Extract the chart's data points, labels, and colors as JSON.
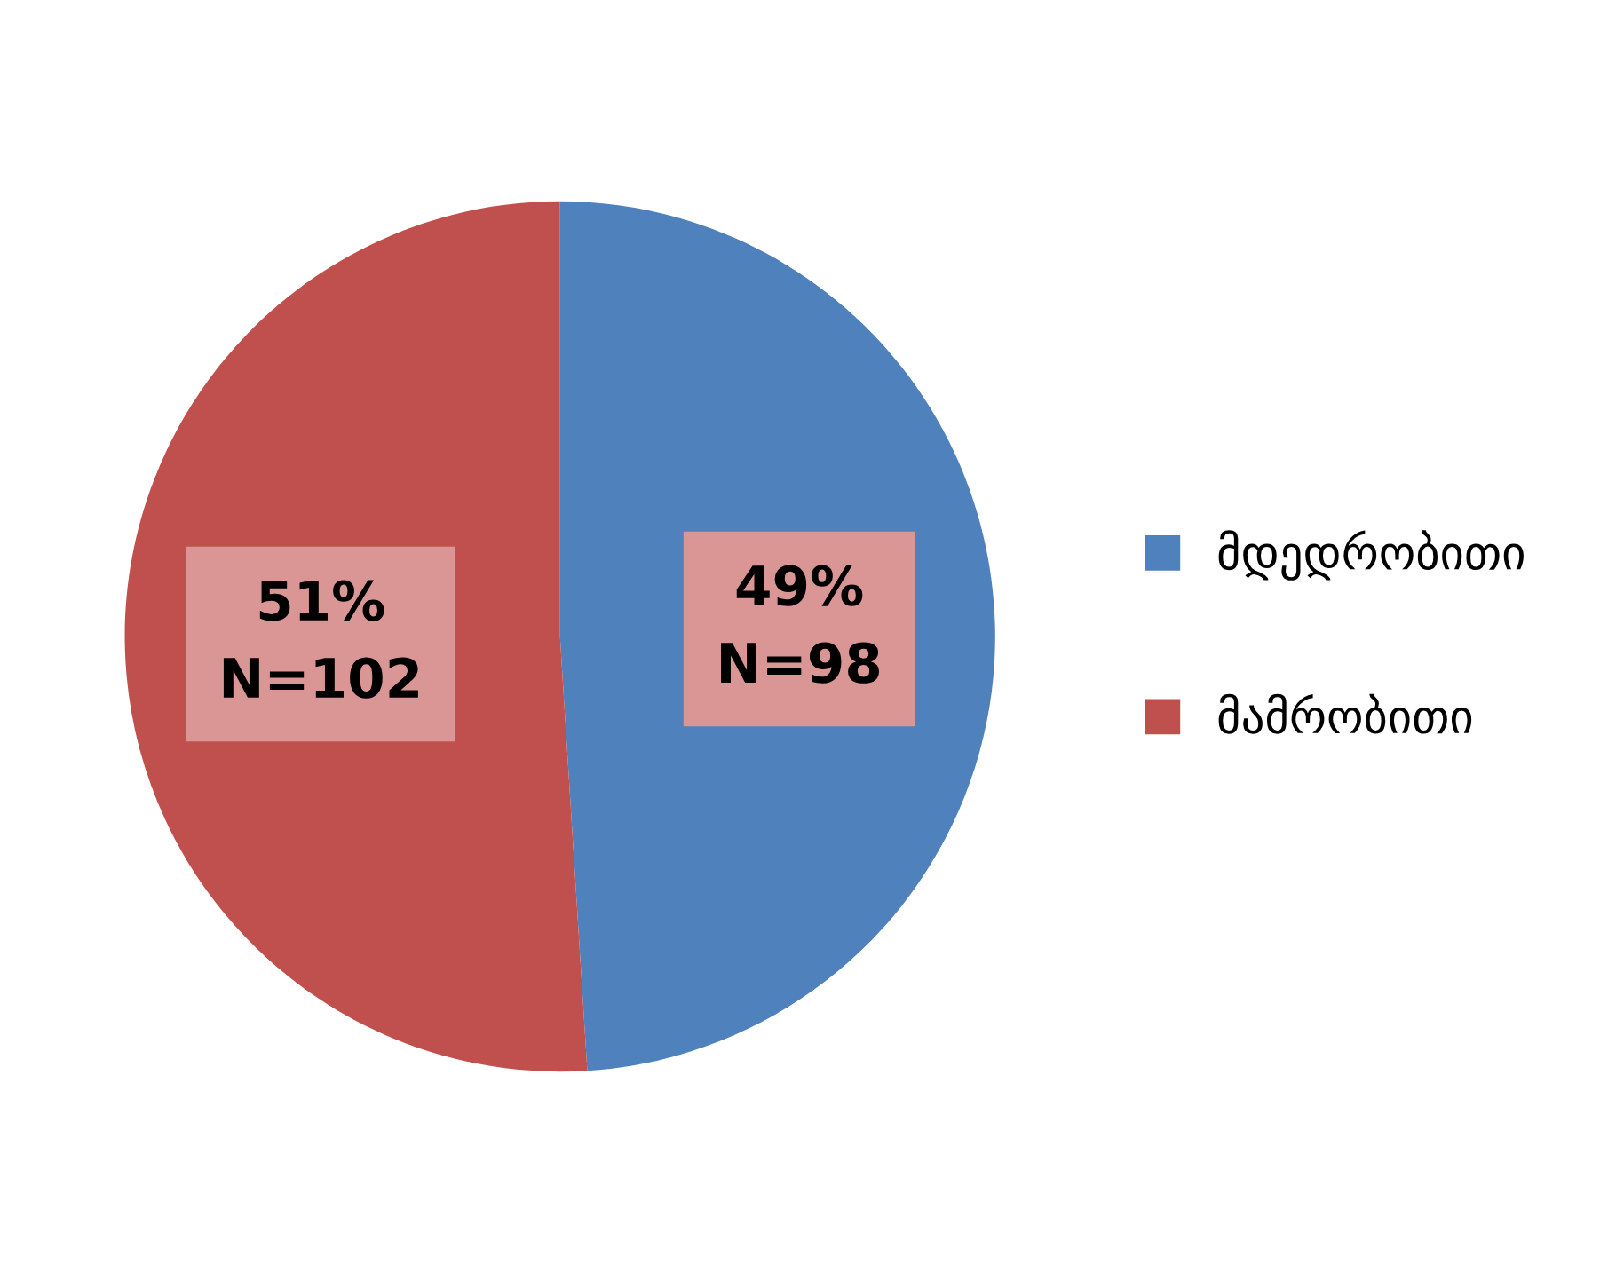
{
  "chart_data": {
    "type": "pie",
    "categories": [
      "მდედრობითი",
      "მამრობითი"
    ],
    "values": [
      49,
      51
    ],
    "colors": [
      "#4f81bd",
      "#c0504d"
    ],
    "value_labels": [
      "49%\nN=98",
      "51%\nN=102"
    ],
    "legend": "right"
  }
}
